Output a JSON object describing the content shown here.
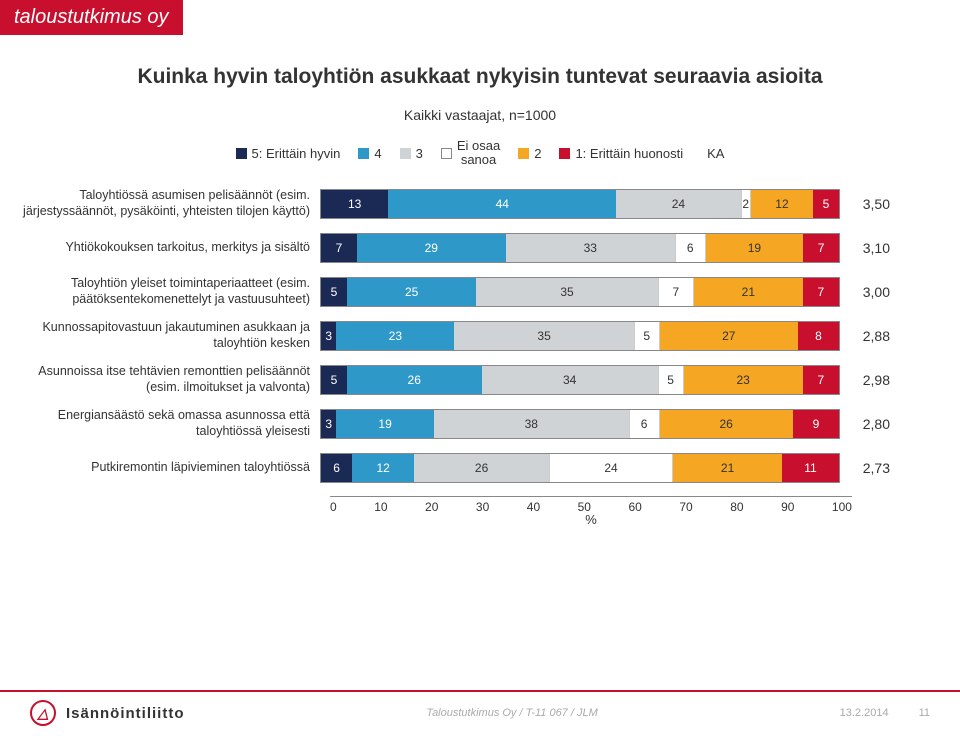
{
  "brand": "taloustutkimus oy",
  "title": "Kuinka hyvin taloyhtiön asukkaat nykyisin tuntevat seuraavia asioita",
  "subtitle": "Kaikki vastaajat, n=1000",
  "legend": {
    "items": [
      {
        "label": "5: Erittäin hyvin",
        "color": "#1b2a55"
      },
      {
        "label": "4",
        "color": "#2e99c9"
      },
      {
        "label": "3",
        "color": "#d0d3d6"
      },
      {
        "label": "Ei osaa\nsanoa",
        "color": "#ffffff"
      },
      {
        "label": "2",
        "color": "#f5a623"
      },
      {
        "label": "1: Erittäin huonosti",
        "color": "#c8102e"
      }
    ],
    "ka_label": "KA"
  },
  "segment_text_colors": [
    "#ffffff",
    "#ffffff",
    "#333333",
    "#333333",
    "#333333",
    "#ffffff"
  ],
  "rows": [
    {
      "label": "Taloyhtiössä asumisen pelisäännöt (esim. järjestyssäännöt, pysäköinti, yhteisten tilojen käyttö)",
      "values": [
        13,
        44,
        24,
        2,
        12,
        5
      ],
      "ka": "3,50"
    },
    {
      "label": "Yhtiökokouksen tarkoitus, merkitys ja sisältö",
      "values": [
        7,
        29,
        33,
        6,
        19,
        7
      ],
      "ka": "3,10"
    },
    {
      "label": "Taloyhtiön yleiset toimintaperiaatteet (esim. päätöksentekomenettelyt ja vastuusuhteet)",
      "values": [
        5,
        25,
        35,
        7,
        21,
        7
      ],
      "ka": "3,00"
    },
    {
      "label": "Kunnossapitovastuun jakautuminen asukkaan ja taloyhtiön kesken",
      "values": [
        3,
        23,
        35,
        5,
        27,
        8
      ],
      "ka": "2,88"
    },
    {
      "label": "Asunnoissa itse tehtävien remonttien pelisäännöt (esim. ilmoitukset ja valvonta)",
      "values": [
        5,
        26,
        34,
        5,
        23,
        7
      ],
      "ka": "2,98"
    },
    {
      "label": "Energiansäästö sekä omassa asunnossa että taloyhtiössä yleisesti",
      "values": [
        3,
        19,
        38,
        6,
        26,
        9
      ],
      "ka": "2,80"
    },
    {
      "label": "Putkiremontin läpivieminen taloyhtiössä",
      "values": [
        6,
        12,
        26,
        24,
        21,
        11
      ],
      "ka": "2,73"
    }
  ],
  "axis": {
    "min": 0,
    "max": 100,
    "step": 10,
    "label": "%"
  },
  "footer": {
    "logo_text": "Isännöintiliitto",
    "mid": "Taloustutkimus Oy / T-11 067 / JLM",
    "date": "13.2.2014",
    "page": "11"
  }
}
